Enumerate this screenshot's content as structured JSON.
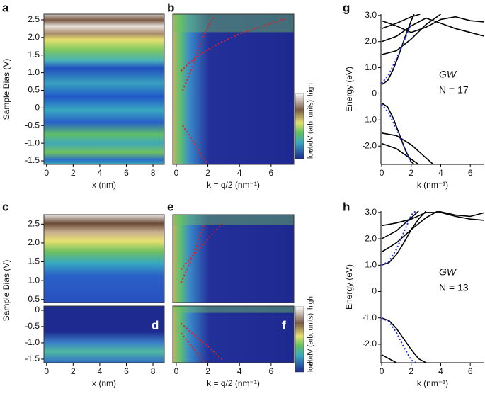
{
  "charts": [
    {
      "type": "heatmap",
      "panel_label": "a",
      "ylabel": "Sample Bias (V)",
      "xlabel": "x (nm)",
      "xlim": [
        -0.2,
        8.85
      ],
      "xticks": [
        0,
        2,
        4,
        6,
        8
      ],
      "ylim": [
        -1.6,
        2.66
      ],
      "yticks": [
        2.5,
        {
          "value": 2,
          "label": "2.0"
        },
        1.5,
        {
          "value": 1,
          "label": "1.0"
        },
        0.5,
        0,
        -0.5,
        {
          "value": -1,
          "label": "-1.0"
        },
        -1.5
      ]
    },
    {
      "type": "heatmap",
      "panel_label": "b",
      "xlabel": "k = q/2 (nm⁻¹)",
      "xlim": [
        -0.22,
        7.44
      ],
      "xticks": [
        0,
        2,
        4,
        6
      ],
      "ylim": [
        -1.6,
        2.66
      ],
      "yticks": [],
      "colorbar": {
        "label": "dI/dV (arb. units)",
        "high": "high",
        "low": "low"
      },
      "series": [
        {
          "color": "#e02020",
          "x": [
            0.3,
            1,
            2,
            3,
            4,
            5,
            6,
            7
          ],
          "values": [
            1.05,
            1.35,
            1.65,
            1.9,
            2.1,
            2.25,
            2.4,
            2.55
          ]
        },
        {
          "color": "#e02020",
          "x": [
            0.4,
            0.8,
            1.2,
            1.6,
            2.0,
            2.4
          ],
          "values": [
            0.5,
            0.9,
            1.4,
            1.9,
            2.3,
            2.6
          ]
        },
        {
          "color": "#e02020",
          "x": [
            0.4,
            0.8,
            1.2,
            1.6,
            2.0
          ],
          "values": [
            -0.5,
            -0.75,
            -1.05,
            -1.35,
            -1.6
          ]
        }
      ]
    },
    {
      "type": "line",
      "panel_label": "g",
      "ylabel": "Energy (eV)",
      "xlabel": "k (nm⁻¹)",
      "annotations": [
        "GW",
        "N = 17"
      ],
      "xlim": [
        -0.05,
        6.95
      ],
      "xticks": [
        0,
        2,
        4,
        6
      ],
      "ylim": [
        -2.7,
        3.05
      ],
      "yticks": [
        {
          "value": 3,
          "label": "3.0"
        },
        {
          "value": 2,
          "label": "2.0"
        },
        {
          "value": 1,
          "label": "1.0"
        },
        0,
        {
          "value": -1,
          "label": "-1.0"
        },
        {
          "value": -2,
          "label": "-2.0"
        }
      ],
      "series": [
        {
          "color": "#000000",
          "dash": false,
          "x": [
            0,
            0.4,
            0.8,
            1.2,
            1.6,
            2.0,
            2.2
          ],
          "values": [
            0.35,
            0.5,
            0.95,
            1.55,
            2.2,
            2.8,
            3.05
          ]
        },
        {
          "color": "#000000",
          "dash": false,
          "x": [
            0,
            0.4,
            0.8,
            1.2,
            1.6,
            2.0,
            2.2
          ],
          "values": [
            -0.35,
            -0.5,
            -0.95,
            -1.55,
            -2.15,
            -2.6,
            -2.7
          ]
        },
        {
          "color": "#000000",
          "dash": false,
          "x": [
            0,
            1,
            2,
            3,
            4
          ],
          "values": [
            1.5,
            1.65,
            2.1,
            2.65,
            3.05
          ]
        },
        {
          "color": "#000000",
          "dash": false,
          "x": [
            0,
            1,
            2,
            3,
            4,
            5,
            6,
            7
          ],
          "values": [
            2.0,
            2.2,
            2.6,
            2.9,
            2.7,
            2.5,
            2.35,
            2.2
          ]
        },
        {
          "color": "#000000",
          "dash": false,
          "x": [
            0,
            1,
            2,
            2.6
          ],
          "values": [
            2.5,
            2.7,
            2.95,
            3.05
          ]
        },
        {
          "color": "#000000",
          "dash": false,
          "x": [
            0,
            1,
            2,
            3,
            4,
            5,
            6,
            7
          ],
          "values": [
            2.8,
            2.6,
            2.35,
            2.55,
            2.85,
            2.95,
            2.8,
            2.75
          ]
        },
        {
          "color": "#000000",
          "dash": false,
          "x": [
            0,
            1,
            2,
            3,
            3.5
          ],
          "values": [
            -1.5,
            -1.6,
            -1.95,
            -2.45,
            -2.7
          ]
        },
        {
          "color": "#000000",
          "dash": false,
          "x": [
            0,
            1,
            2,
            2.5
          ],
          "values": [
            -1.9,
            -2.1,
            -2.5,
            -2.7
          ]
        },
        {
          "color": "#1c2fd8",
          "dash": true,
          "x": [
            0,
            0.5,
            1,
            1.5,
            2.0
          ],
          "values": [
            0.4,
            0.75,
            1.35,
            2.0,
            2.7
          ]
        },
        {
          "color": "#1c2fd8",
          "dash": true,
          "x": [
            0,
            0.5,
            1,
            1.5,
            2.0
          ],
          "values": [
            -0.4,
            -0.75,
            -1.35,
            -2.0,
            -2.65
          ]
        }
      ]
    },
    {
      "type": "heatmap",
      "panel_label": "c",
      "ylabel": "Sample Bias (V)",
      "xlim": [
        -0.2,
        8.85
      ],
      "xticks": [],
      "ylim": [
        0.42,
        2.75
      ],
      "yticks": [
        2.5,
        {
          "value": 2,
          "label": "2.0"
        },
        1.5,
        {
          "value": 1,
          "label": "1.0"
        },
        0.5
      ]
    },
    {
      "type": "heatmap",
      "panel_label": "d",
      "xlabel": "x (nm)",
      "xlim": [
        -0.2,
        8.85
      ],
      "xticks": [
        0,
        2,
        4,
        6,
        8
      ],
      "ylim": [
        -1.61,
        0.13
      ],
      "yticks": [
        0,
        -0.5,
        {
          "value": -1,
          "label": "-1.0"
        },
        -1.5
      ]
    },
    {
      "type": "heatmap",
      "panel_label": "e",
      "xlim": [
        -0.22,
        7.44
      ],
      "xticks": [],
      "ylim": [
        0.42,
        2.75
      ],
      "yticks": [],
      "series": [
        {
          "color": "#e02020",
          "x": [
            0.3,
            1,
            2,
            3
          ],
          "values": [
            1.3,
            1.65,
            2.1,
            2.55
          ]
        },
        {
          "color": "#e02020",
          "x": [
            0.3,
            0.8,
            1.3,
            1.8
          ],
          "values": [
            0.95,
            1.4,
            1.95,
            2.5
          ]
        }
      ]
    },
    {
      "type": "heatmap",
      "panel_label": "f",
      "xlabel": "k = q/2 (nm⁻¹)",
      "xlim": [
        -0.22,
        7.44
      ],
      "xticks": [
        0,
        2,
        4,
        6
      ],
      "ylim": [
        -1.61,
        0.13
      ],
      "yticks": [],
      "colorbar": {
        "label": "dI/dV (arb. units)",
        "high": "high",
        "low": "low"
      },
      "series": [
        {
          "color": "#e02020",
          "x": [
            0.3,
            1,
            2,
            3
          ],
          "values": [
            -0.4,
            -0.7,
            -1.1,
            -1.55
          ]
        },
        {
          "color": "#e02020",
          "x": [
            0.3,
            0.8,
            1.3,
            1.8
          ],
          "values": [
            -0.7,
            -1.0,
            -1.3,
            -1.6
          ]
        }
      ]
    },
    {
      "type": "line",
      "panel_label": "h",
      "ylabel": "Energy (eV)",
      "xlabel": "k (nm⁻¹)",
      "annotations": [
        "GW",
        "N = 13"
      ],
      "xlim": [
        -0.05,
        6.95
      ],
      "xticks": [
        0,
        2,
        4,
        6
      ],
      "ylim": [
        -2.7,
        3.05
      ],
      "yticks": [
        {
          "value": 3,
          "label": "3.0"
        },
        {
          "value": 2,
          "label": "2.0"
        },
        {
          "value": 1,
          "label": "1.0"
        },
        0,
        {
          "value": -1,
          "label": "-1.0"
        },
        {
          "value": -2,
          "label": "-2.0"
        }
      ],
      "series": [
        {
          "color": "#000000",
          "dash": false,
          "x": [
            0,
            0.5,
            1,
            1.5,
            2,
            2.5,
            3
          ],
          "values": [
            1.0,
            1.1,
            1.4,
            1.85,
            2.35,
            2.75,
            3.05
          ]
        },
        {
          "color": "#000000",
          "dash": false,
          "x": [
            0,
            0.5,
            1,
            1.5,
            2,
            2.5,
            3
          ],
          "values": [
            -1.0,
            -1.1,
            -1.4,
            -1.8,
            -2.2,
            -2.55,
            -2.7
          ]
        },
        {
          "color": "#000000",
          "dash": false,
          "x": [
            0,
            1,
            2,
            3,
            3.8
          ],
          "values": [
            1.5,
            1.85,
            2.35,
            2.8,
            3.05
          ]
        },
        {
          "color": "#000000",
          "dash": false,
          "x": [
            0,
            1,
            2,
            2.5
          ],
          "values": [
            2.0,
            2.3,
            2.8,
            3.05
          ]
        },
        {
          "color": "#000000",
          "dash": false,
          "x": [
            0,
            1,
            2,
            3,
            4,
            5,
            6,
            7
          ],
          "values": [
            2.5,
            2.6,
            2.75,
            3.0,
            3.0,
            2.85,
            2.75,
            2.7
          ]
        },
        {
          "color": "#000000",
          "dash": false,
          "x": [
            3.8,
            5,
            6,
            7
          ],
          "values": [
            3.05,
            2.9,
            2.85,
            3.0
          ]
        },
        {
          "color": "#000000",
          "dash": false,
          "x": [
            0,
            0.5,
            1
          ],
          "values": [
            -2.4,
            -2.55,
            -2.7
          ]
        },
        {
          "color": "#1c2fd8",
          "dash": true,
          "x": [
            0,
            0.5,
            1,
            1.5,
            2,
            2.3
          ],
          "values": [
            1.0,
            1.15,
            1.6,
            2.25,
            2.9,
            3.05
          ]
        },
        {
          "color": "#1c2fd8",
          "dash": true,
          "x": [
            0,
            0.5,
            1,
            1.5,
            2,
            2.3
          ],
          "values": [
            -1.0,
            -1.15,
            -1.55,
            -2.1,
            -2.6,
            -2.7
          ]
        }
      ]
    }
  ]
}
